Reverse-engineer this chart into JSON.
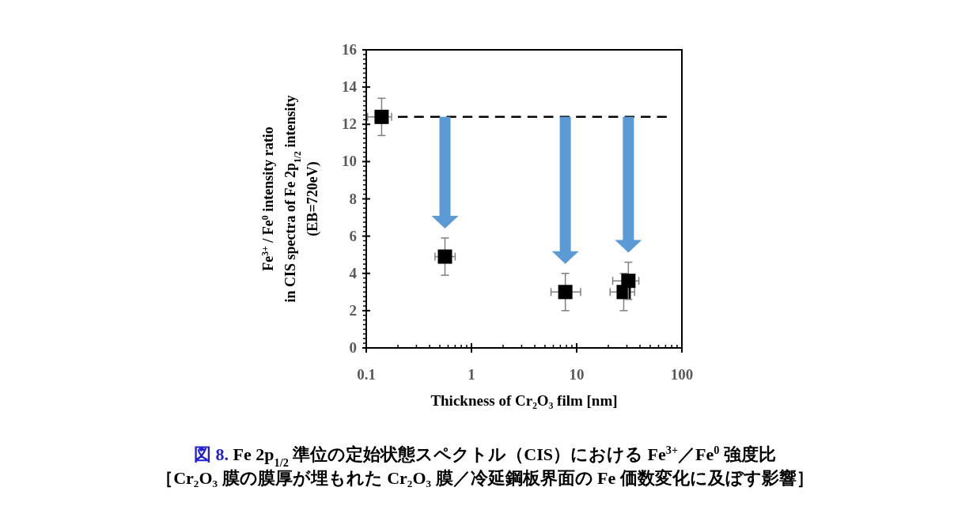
{
  "chart_data": {
    "type": "scatter",
    "title": "図 8.  Fe 2p$_{1/2}$ 準位の定始状態スペクトル（CIS）における Fe$^{3+}$／Fe$^{0}$ 強度比",
    "subtitle": "［Cr₂O₃ 膜の膜厚が埋もれた Cr₂O₃ 膜／冷延鋼板界面の Fe 価数変化に及ぼす影響］",
    "xlabel": "Thickness of Cr₂O₃ film [nm]",
    "ylabel": "Fe$^{3+}$ / Fe$^{0}$ intensity ratio\nin CIS  spectra of Fe  2p$_{1/2}$ intensity\n(EB=720eV)",
    "log": "x",
    "xlim": [
      0.1,
      100
    ],
    "xticks": [
      0.1,
      1,
      10,
      100
    ],
    "ylim": [
      0,
      16
    ],
    "yticks": [
      0,
      2,
      4,
      6,
      8,
      10,
      12,
      14,
      16
    ],
    "marker": "square",
    "grid": false,
    "series": [
      {
        "color": "#000000",
        "x": [
          0.14,
          0.56,
          7.8,
          28,
          31
        ],
        "values": [
          12.4,
          4.9,
          3.0,
          3.0,
          3.6
        ],
        "errors": [
          [
            11.4,
            13.4
          ],
          [
            3.9,
            5.9
          ],
          [
            2.0,
            4.0
          ],
          [
            2.0,
            4.0
          ],
          [
            2.6,
            4.6
          ]
        ],
        "xerrors": [
          [
            0.103,
            0.174
          ],
          [
            0.45,
            0.7
          ],
          [
            5.7,
            10.9
          ],
          [
            20.8,
            35.5
          ],
          [
            22,
            39
          ]
        ]
      },
      {
        "type": "line",
        "color": "#000000",
        "line_style": "dashed",
        "marker": "none",
        "x": [
          0.2,
          72
        ],
        "values": [
          12.4,
          12.4
        ]
      }
    ]
  }
}
